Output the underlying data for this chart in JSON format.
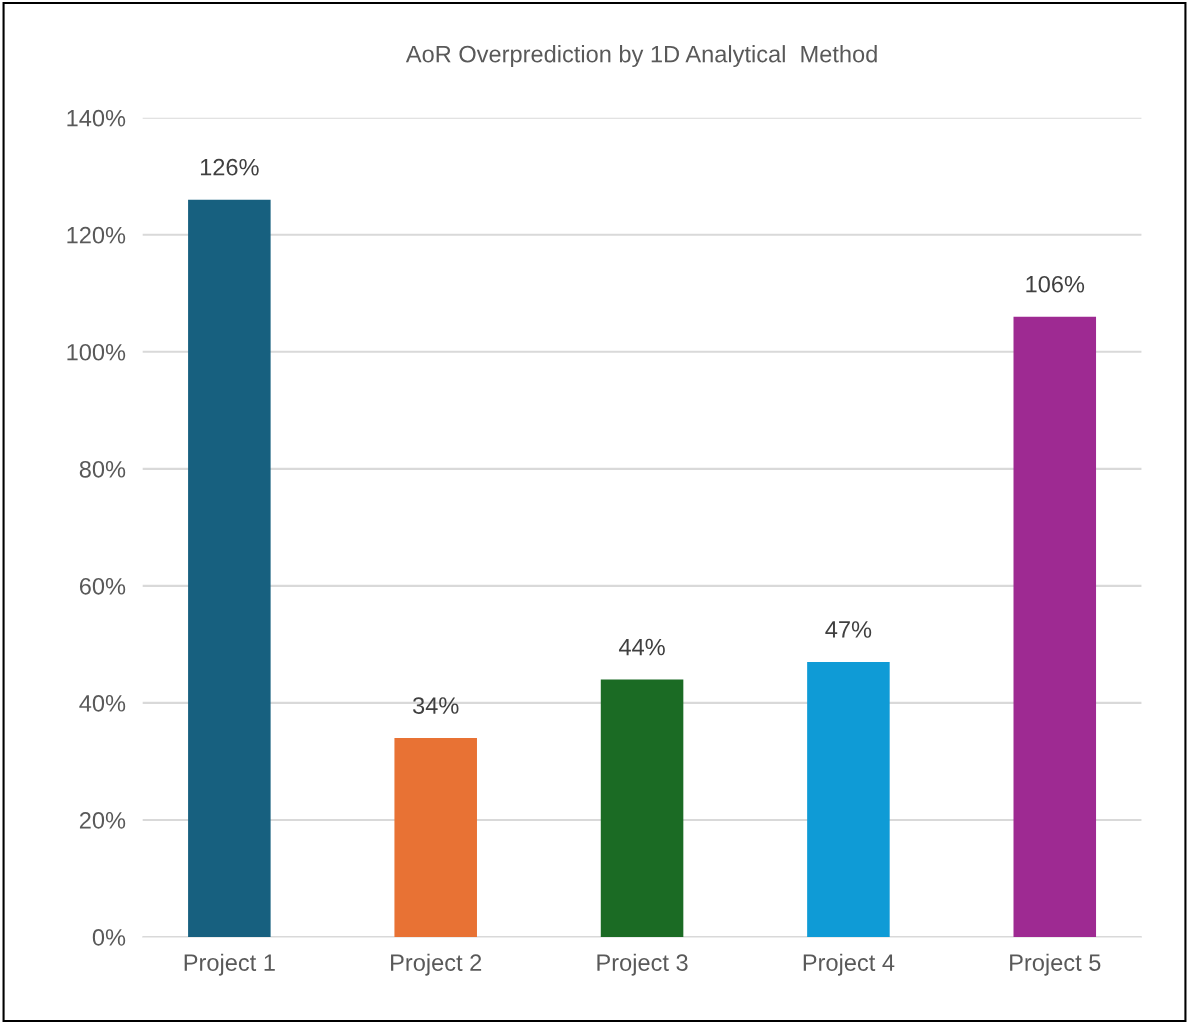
{
  "chart_data": {
    "type": "bar",
    "title": "AoR Overprediction by 1D Analytical  Method",
    "categories": [
      "Project 1",
      "Project 2",
      "Project 3",
      "Project 4",
      "Project 5"
    ],
    "values": [
      126,
      34,
      44,
      47,
      106
    ],
    "colors": [
      "#17607f",
      "#e87234",
      "#1b6b24",
      "#0f9bd6",
      "#9e2a92"
    ],
    "value_labels": [
      "126%",
      "34%",
      "44%",
      "47%",
      "106%"
    ],
    "ylim": [
      0,
      140
    ],
    "yticks": [
      {
        "value": 0,
        "label": "0%"
      },
      {
        "value": 20,
        "label": "20%"
      },
      {
        "value": 40,
        "label": "40%"
      },
      {
        "value": 60,
        "label": "60%"
      },
      {
        "value": 80,
        "label": "80%"
      },
      {
        "value": 100,
        "label": "100%"
      },
      {
        "value": 120,
        "label": "120%"
      },
      {
        "value": 140,
        "label": "140%"
      }
    ],
    "grid": "y"
  }
}
